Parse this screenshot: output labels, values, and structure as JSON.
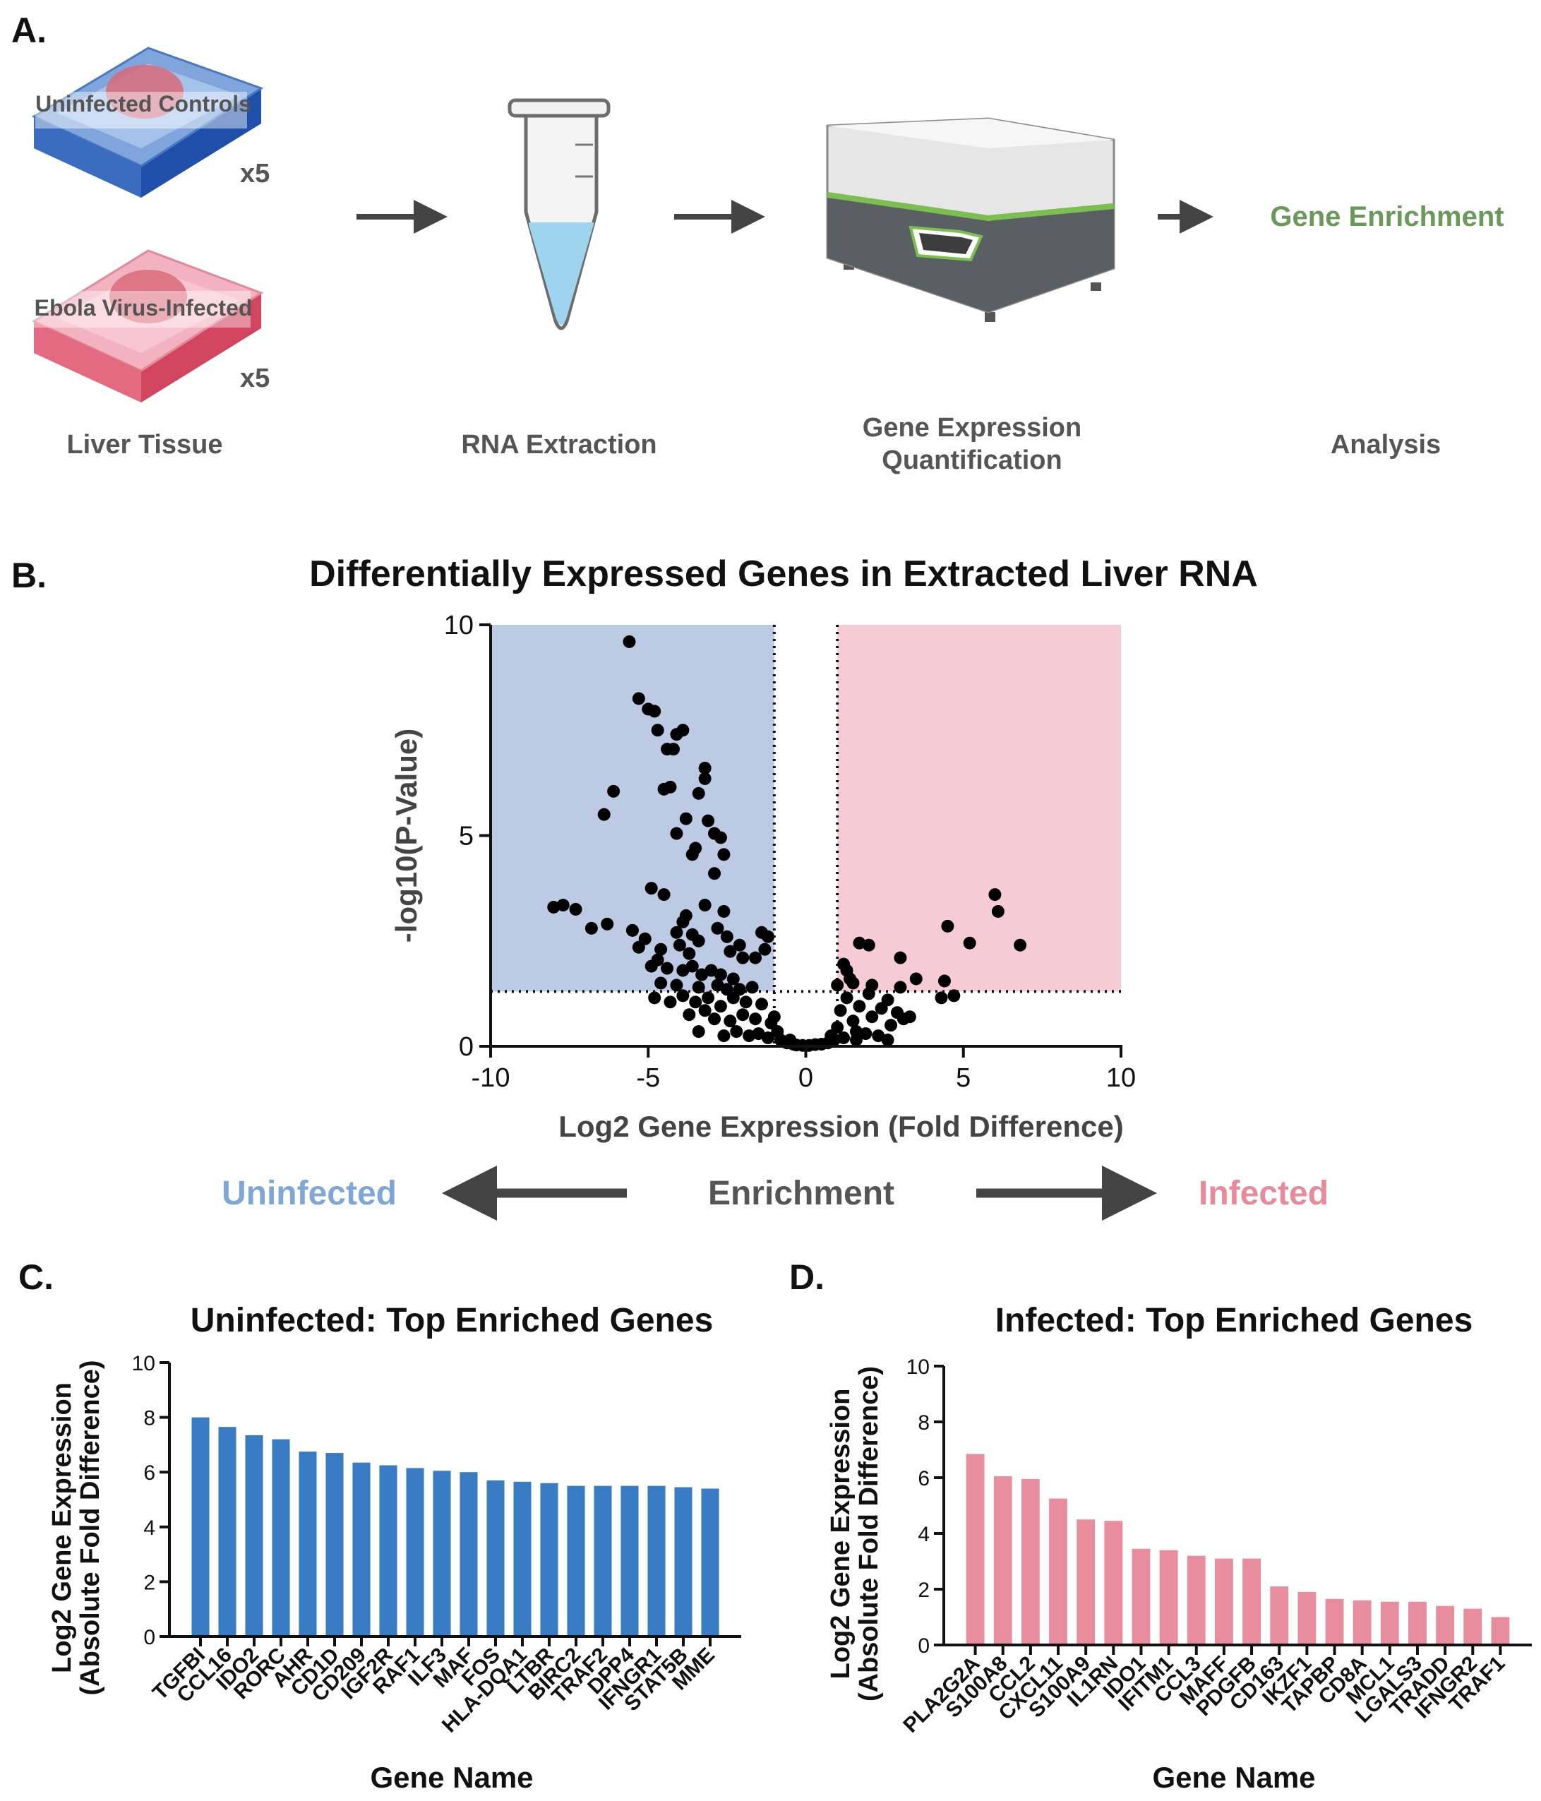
{
  "panels": {
    "a": "A.",
    "b": "B.",
    "c": "C.",
    "d": "D."
  },
  "workflow": {
    "samples": [
      {
        "label": "Uninfected Controls",
        "count": "x5"
      },
      {
        "label": "Ebola Virus-Infected",
        "count": "x5"
      }
    ],
    "steps": [
      "Liver Tissue",
      "RNA Extraction",
      "Gene Expression",
      "Quantification",
      "Analysis"
    ],
    "result": "Gene Enrichment"
  },
  "enrichment": {
    "left": "Uninfected",
    "center": "Enrichment",
    "right": "Infected"
  },
  "colors": {
    "uninfected_bar": "#3a7cc4",
    "infected_bar": "#e88d9d",
    "uninfected_label": "#7ea6d6",
    "infected_label": "#e88a9a",
    "enrichment_green": "#6a9a5a",
    "blue_region": "#bccbe3",
    "pink_region": "#f5ccd4"
  },
  "chart_data": [
    {
      "type": "scatter",
      "title": "Differentially Expressed Genes in Extracted Liver RNA",
      "xlabel": "Log2 Gene Expression (Fold Difference)",
      "ylabel": "-log10(P-Value)",
      "xlim": [
        -10,
        10
      ],
      "ylim": [
        0,
        10
      ],
      "xticks": [
        -10,
        -5,
        0,
        5,
        10
      ],
      "yticks": [
        0,
        5,
        10
      ],
      "thresholds": {
        "fold": [
          -1,
          1
        ],
        "p": 1.3
      },
      "points": [
        [
          -5.6,
          9.6
        ],
        [
          -5.3,
          8.25
        ],
        [
          -5.0,
          8.0
        ],
        [
          -4.8,
          7.95
        ],
        [
          -4.1,
          7.4
        ],
        [
          -4.7,
          7.5
        ],
        [
          -3.9,
          7.5
        ],
        [
          -4.4,
          7.05
        ],
        [
          -4.2,
          7.05
        ],
        [
          -3.2,
          6.6
        ],
        [
          -3.2,
          6.35
        ],
        [
          -4.3,
          6.15
        ],
        [
          -4.5,
          6.1
        ],
        [
          -6.1,
          6.05
        ],
        [
          -3.4,
          6.0
        ],
        [
          -6.4,
          5.5
        ],
        [
          -3.8,
          5.4
        ],
        [
          -4.1,
          5.05
        ],
        [
          -3.1,
          5.35
        ],
        [
          -2.9,
          5.05
        ],
        [
          -2.7,
          4.95
        ],
        [
          -3.6,
          4.55
        ],
        [
          -2.6,
          4.55
        ],
        [
          -3.5,
          4.7
        ],
        [
          -2.9,
          4.1
        ],
        [
          -4.9,
          3.75
        ],
        [
          -4.5,
          3.6
        ],
        [
          -8.0,
          3.3
        ],
        [
          -7.7,
          3.35
        ],
        [
          -7.3,
          3.25
        ],
        [
          -3.2,
          3.35
        ],
        [
          -3.8,
          3.1
        ],
        [
          -2.6,
          3.2
        ],
        [
          -6.8,
          2.8
        ],
        [
          -5.5,
          2.75
        ],
        [
          -6.3,
          2.9
        ],
        [
          -2.5,
          2.6
        ],
        [
          -3.9,
          2.95
        ],
        [
          -4.1,
          2.7
        ],
        [
          -1.4,
          2.7
        ],
        [
          -1.2,
          2.6
        ],
        [
          -2.8,
          2.8
        ],
        [
          -5.3,
          2.35
        ],
        [
          -4.6,
          2.3
        ],
        [
          -3.7,
          2.2
        ],
        [
          -3.4,
          2.5
        ],
        [
          -4.0,
          2.4
        ],
        [
          -2.1,
          2.4
        ],
        [
          -1.3,
          2.3
        ],
        [
          -2.0,
          2.1
        ],
        [
          -1.6,
          2.1
        ],
        [
          -4.9,
          1.9
        ],
        [
          -4.4,
          1.85
        ],
        [
          -3.9,
          1.8
        ],
        [
          -3.6,
          1.9
        ],
        [
          -3.3,
          1.7
        ],
        [
          -3.0,
          1.8
        ],
        [
          -2.7,
          1.7
        ],
        [
          -2.3,
          1.6
        ],
        [
          -4.6,
          1.5
        ],
        [
          -4.1,
          1.45
        ],
        [
          -3.4,
          1.4
        ],
        [
          -2.8,
          1.45
        ],
        [
          -2.5,
          1.35
        ],
        [
          -4.8,
          1.15
        ],
        [
          -4.3,
          1.05
        ],
        [
          -3.9,
          1.2
        ],
        [
          -3.5,
          1.05
        ],
        [
          -3.1,
          1.15
        ],
        [
          -2.7,
          0.95
        ],
        [
          -2.3,
          1.15
        ],
        [
          -1.9,
          1.05
        ],
        [
          -1.4,
          1.0
        ],
        [
          -3.7,
          0.75
        ],
        [
          -3.2,
          0.85
        ],
        [
          -2.9,
          0.65
        ],
        [
          -2.4,
          0.6
        ],
        [
          -2.0,
          0.75
        ],
        [
          -1.6,
          0.65
        ],
        [
          -1.1,
          0.55
        ],
        [
          -0.9,
          0.35
        ],
        [
          -3.4,
          0.35
        ],
        [
          -2.6,
          0.25
        ],
        [
          -2.2,
          0.35
        ],
        [
          -1.8,
          0.25
        ],
        [
          -1.5,
          0.3
        ],
        [
          -1.2,
          0.2
        ],
        [
          -0.8,
          0.15
        ],
        [
          -0.6,
          0.08
        ],
        [
          -0.4,
          0.05
        ],
        [
          -0.3,
          0.03
        ],
        [
          -0.1,
          0.02
        ],
        [
          0.1,
          0.02
        ],
        [
          0.3,
          0.04
        ],
        [
          0.5,
          0.05
        ],
        [
          0.7,
          0.08
        ],
        [
          0.9,
          0.15
        ],
        [
          1.2,
          0.2
        ],
        [
          1.6,
          0.15
        ],
        [
          1.9,
          0.3
        ],
        [
          2.3,
          0.25
        ],
        [
          2.6,
          0.15
        ],
        [
          1.0,
          0.45
        ],
        [
          1.5,
          0.6
        ],
        [
          2.1,
          0.7
        ],
        [
          2.7,
          0.5
        ],
        [
          3.1,
          0.65
        ],
        [
          1.1,
          0.85
        ],
        [
          1.7,
          0.95
        ],
        [
          2.4,
          0.9
        ],
        [
          2.9,
          0.8
        ],
        [
          3.3,
          0.7
        ],
        [
          1.3,
          1.15
        ],
        [
          2.0,
          1.25
        ],
        [
          2.6,
          1.1
        ],
        [
          1.0,
          1.45
        ],
        [
          1.4,
          1.6
        ],
        [
          2.1,
          1.45
        ],
        [
          3.0,
          1.4
        ],
        [
          3.5,
          1.6
        ],
        [
          1.3,
          1.8
        ],
        [
          1.2,
          1.95
        ],
        [
          1.5,
          1.5
        ],
        [
          3.0,
          2.1
        ],
        [
          2.0,
          2.4
        ],
        [
          1.7,
          2.45
        ],
        [
          4.5,
          2.85
        ],
        [
          4.4,
          1.55
        ],
        [
          4.7,
          1.2
        ],
        [
          4.3,
          1.15
        ],
        [
          5.2,
          2.45
        ],
        [
          6.0,
          3.6
        ],
        [
          6.1,
          3.2
        ],
        [
          6.8,
          2.4
        ],
        [
          1.6,
          0.35
        ],
        [
          0.8,
          0.25
        ],
        [
          -0.5,
          0.15
        ],
        [
          -1.0,
          0.7
        ],
        [
          -2.1,
          1.35
        ],
        [
          -3.6,
          2.65
        ],
        [
          -5.1,
          2.55
        ],
        [
          -4.7,
          2.05
        ],
        [
          -2.4,
          2.25
        ],
        [
          -1.7,
          1.4
        ]
      ]
    },
    {
      "type": "bar",
      "title": "Uninfected: Top Enriched Genes",
      "xlabel": "Gene Name",
      "ylabel": "Log2 Gene Expression",
      "ylabel2": "(Absolute Fold Difference)",
      "ylim": [
        0,
        10
      ],
      "yticks": [
        0,
        2,
        4,
        6,
        8,
        10
      ],
      "categories": [
        "TGFBI",
        "CCL16",
        "IDO2",
        "RORC",
        "AHR",
        "CD1D",
        "CD209",
        "IGF2R",
        "RAF1",
        "ILF3",
        "MAF",
        "FOS",
        "HLA-DQA1",
        "LTBR",
        "BIRC2",
        "TRAF2",
        "DPP4",
        "IFNGR1",
        "STAT5B",
        "MME"
      ],
      "values": [
        8.0,
        7.65,
        7.35,
        7.2,
        6.75,
        6.7,
        6.35,
        6.25,
        6.15,
        6.05,
        6.0,
        5.7,
        5.65,
        5.6,
        5.5,
        5.5,
        5.5,
        5.5,
        5.45,
        5.4
      ]
    },
    {
      "type": "bar",
      "title": "Infected: Top Enriched Genes",
      "xlabel": "Gene Name",
      "ylabel": "Log2 Gene Expression",
      "ylabel2": "(Absolute Fold Difference)",
      "ylim": [
        0,
        10
      ],
      "yticks": [
        0,
        2,
        4,
        6,
        8,
        10
      ],
      "categories": [
        "PLA2G2A",
        "S100A8",
        "CCL2",
        "CXCL11",
        "S100A9",
        "IL1RN",
        "IDO1",
        "IFITM1",
        "CCL3",
        "MAFF",
        "PDGFB",
        "CD163",
        "IKZF1",
        "TAPBP",
        "CD8A",
        "MCL1",
        "LGALS3",
        "TRADD",
        "IFNGR2",
        "TRAF1"
      ],
      "values": [
        6.85,
        6.05,
        5.95,
        5.25,
        4.5,
        4.45,
        3.45,
        3.4,
        3.2,
        3.1,
        3.1,
        2.1,
        1.9,
        1.65,
        1.6,
        1.55,
        1.55,
        1.4,
        1.3,
        1.0
      ]
    }
  ]
}
